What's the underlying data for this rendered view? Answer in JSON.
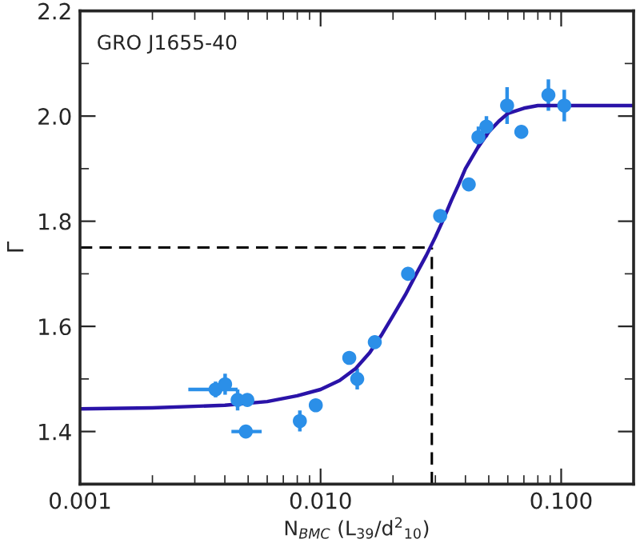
{
  "chart_data": {
    "type": "scatter",
    "xlabel": "N$_{BMC}$ (L$_{39}$/d$^{2}$$_{10}$)",
    "ylabel": "Γ",
    "log": "x",
    "annotations": [
      "GRO J1655-40"
    ],
    "series": [
      {
        "color": "#2b8fe8",
        "marker": "circle",
        "x": [
          0.00366,
          0.00401,
          0.00452,
          0.00496,
          0.00489,
          0.0082,
          0.00955,
          0.01316,
          0.0142,
          0.0168,
          0.0231,
          0.0314,
          0.0413,
          0.0453,
          0.0489,
          0.0596,
          0.0683,
          0.0885,
          0.103
        ],
        "values": [
          1.48,
          1.49,
          1.46,
          1.46,
          1.4,
          1.42,
          1.45,
          1.54,
          1.5,
          1.57,
          1.7,
          1.81,
          1.87,
          1.96,
          1.98,
          2.02,
          1.97,
          2.04,
          2.02
        ],
        "errors": [
          0.015,
          0.02,
          0.02,
          null,
          null,
          0.02,
          null,
          null,
          0.02,
          null,
          null,
          null,
          null,
          0.02,
          0.02,
          0.035,
          null,
          0.03,
          0.03
        ],
        "xerrors": [
          [
            0.00282,
            0.00452
          ],
          null,
          null,
          null,
          [
            0.00426,
            0.00569
          ],
          null,
          null,
          null,
          null,
          null,
          null,
          null,
          null,
          null,
          null,
          null,
          null,
          null,
          null
        ]
      },
      {
        "type": "line",
        "color": "#2a13a8",
        "marker": "none",
        "line_style": "solid",
        "x": [
          0.001,
          0.002,
          0.004,
          0.006,
          0.008,
          0.01,
          0.012,
          0.014,
          0.016,
          0.018,
          0.02,
          0.0225,
          0.025,
          0.0275,
          0.03,
          0.0325,
          0.035,
          0.0375,
          0.04,
          0.045,
          0.05,
          0.055,
          0.06,
          0.07,
          0.08,
          0.2
        ],
        "values": [
          1.443,
          1.445,
          1.45,
          1.457,
          1.468,
          1.48,
          1.497,
          1.52,
          1.55,
          1.585,
          1.62,
          1.66,
          1.7,
          1.735,
          1.77,
          1.805,
          1.84,
          1.87,
          1.9,
          1.94,
          1.97,
          1.99,
          2.005,
          2.015,
          2.02,
          2.02
        ]
      }
    ],
    "ref_lines": [
      {
        "axis": "y",
        "value": 1.75,
        "color": "#000000",
        "line_style": "dashed"
      },
      {
        "axis": "x",
        "value": 0.029,
        "color": "#000000",
        "line_style": "dashed"
      }
    ],
    "xlim": [
      0.001,
      0.2
    ],
    "ylim": [
      1.3,
      2.2
    ],
    "xticks": [
      {
        "value": 0.001,
        "label": "0.001"
      },
      {
        "value": 0.01,
        "label": "0.010"
      },
      {
        "value": 0.1,
        "label": "0.100"
      }
    ],
    "yticks": [
      {
        "value": 1.4,
        "label": "1.4"
      },
      {
        "value": 1.6,
        "label": "1.6"
      },
      {
        "value": 1.8,
        "label": "1.8"
      },
      {
        "value": 2.0,
        "label": "2.0"
      },
      {
        "value": 2.2,
        "label": "2.2"
      }
    ],
    "grid": false,
    "legend": false
  }
}
